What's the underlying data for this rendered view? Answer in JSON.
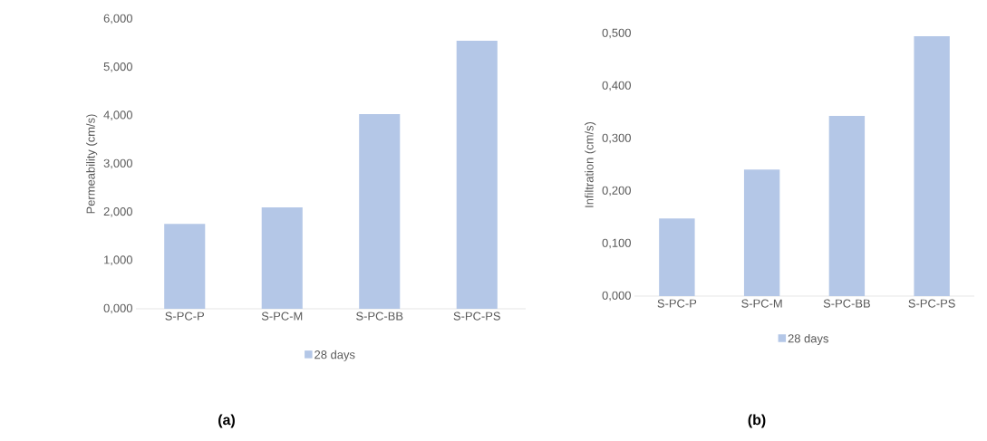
{
  "chart_data": [
    {
      "type": "bar",
      "ylabel": "Permeability (cm/s)",
      "categories": [
        "S-PC-P",
        "S-PC-M",
        "S-PC-BB",
        "S-PC-PS"
      ],
      "series": [
        {
          "name": "28 days",
          "color": "#b4c7e7",
          "values": [
            1.76,
            2.1,
            4.03,
            5.55
          ]
        }
      ],
      "ylim": [
        0,
        6
      ],
      "yticks": [
        {
          "value": 0,
          "label": "0,000"
        },
        {
          "value": 1,
          "label": "1,000"
        },
        {
          "value": 2,
          "label": "2,000"
        },
        {
          "value": 3,
          "label": "3,000"
        },
        {
          "value": 4,
          "label": "4,000"
        },
        {
          "value": 5,
          "label": "5,000"
        },
        {
          "value": 6,
          "label": "6,000"
        }
      ],
      "legend": "bottom",
      "annotations": [
        "(a)"
      ]
    },
    {
      "type": "bar",
      "ylabel": "Infiltration (cm/s)",
      "categories": [
        "S-PC-P",
        "S-PC-M",
        "S-PC-BB",
        "S-PC-PS"
      ],
      "series": [
        {
          "name": "28 days",
          "color": "#b4c7e7",
          "values": [
            0.148,
            0.241,
            0.343,
            0.495
          ]
        }
      ],
      "ylim": [
        0,
        0.5
      ],
      "yticks": [
        {
          "value": 0,
          "label": "0,000"
        },
        {
          "value": 0.1,
          "label": "0,100"
        },
        {
          "value": 0.2,
          "label": "0,200"
        },
        {
          "value": 0.3,
          "label": "0,300"
        },
        {
          "value": 0.4,
          "label": "0,400"
        },
        {
          "value": 0.5,
          "label": "0,500"
        }
      ],
      "legend": "bottom",
      "annotations": [
        "(b)"
      ]
    }
  ]
}
